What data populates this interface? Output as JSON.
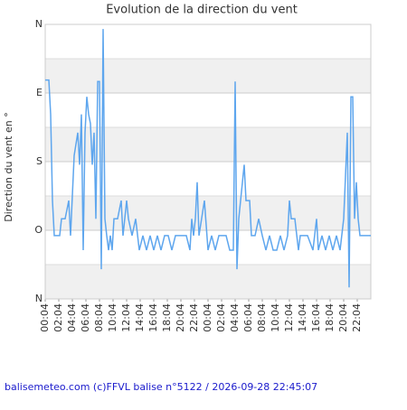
{
  "chart_data": {
    "type": "line",
    "title": "Evolution de la direction du vent",
    "y_label": "Direction du vent en °",
    "footer": "balisemeteo.com (c)FFVL balise n°5122 / 2026-09-28 22:45:07",
    "xlim": [
      0,
      48
    ],
    "xticks": [
      {
        "value": 0,
        "label": "00:04"
      },
      {
        "value": 2,
        "label": "02:04"
      },
      {
        "value": 4,
        "label": "04:04"
      },
      {
        "value": 6,
        "label": "06:04"
      },
      {
        "value": 8,
        "label": "08:04"
      },
      {
        "value": 10,
        "label": "10:04"
      },
      {
        "value": 12,
        "label": "12:04"
      },
      {
        "value": 14,
        "label": "14:04"
      },
      {
        "value": 16,
        "label": "16:04"
      },
      {
        "value": 18,
        "label": "18:04"
      },
      {
        "value": 20,
        "label": "20:04"
      },
      {
        "value": 22,
        "label": "22:04"
      },
      {
        "value": 24,
        "label": "00:04"
      },
      {
        "value": 26,
        "label": "02:04"
      },
      {
        "value": 28,
        "label": "04:04"
      },
      {
        "value": 30,
        "label": "06:04"
      },
      {
        "value": 32,
        "label": "08:04"
      },
      {
        "value": 34,
        "label": "10:04"
      },
      {
        "value": 36,
        "label": "12:04"
      },
      {
        "value": 38,
        "label": "14:04"
      },
      {
        "value": 40,
        "label": "16:04"
      },
      {
        "value": 42,
        "label": "18:04"
      },
      {
        "value": 44,
        "label": "20:04"
      },
      {
        "value": 46,
        "label": "22:04"
      }
    ],
    "ylim": [
      360,
      0
    ],
    "yticks": [
      {
        "value": 0,
        "label": "N"
      },
      {
        "value": 90,
        "label": "E"
      },
      {
        "value": 180,
        "label": "S"
      },
      {
        "value": 270,
        "label": "O"
      },
      {
        "value": 360,
        "label": "N"
      }
    ],
    "grid": true,
    "series": [
      {
        "color": "#5ea6ee",
        "x": [
          0,
          0.53,
          0.8,
          1.07,
          1.33,
          1.6,
          2.13,
          2.4,
          2.93,
          3.47,
          3.73,
          4.27,
          4.8,
          5.07,
          5.33,
          5.6,
          5.87,
          6.13,
          6.4,
          6.67,
          6.93,
          7.2,
          7.47,
          7.73,
          8,
          8.27,
          8.53,
          8.8,
          9.07,
          9.33,
          9.6,
          9.87,
          10.13,
          10.67,
          11.2,
          11.47,
          12,
          12.27,
          12.8,
          13.33,
          13.87,
          14.4,
          14.93,
          15.47,
          16,
          16.53,
          17.07,
          17.6,
          18.13,
          18.67,
          19.2,
          19.73,
          20.8,
          21.33,
          21.6,
          21.87,
          22.13,
          22.4,
          22.67,
          23.47,
          24,
          24.53,
          25.07,
          25.6,
          26.13,
          26.67,
          27.2,
          27.73,
          28,
          28.27,
          28.53,
          28.8,
          29.33,
          29.6,
          30.13,
          30.4,
          30.93,
          31.47,
          32,
          32.53,
          33.07,
          33.6,
          34.13,
          34.67,
          35.2,
          35.73,
          36,
          36.27,
          36.8,
          37.33,
          37.6,
          38.13,
          38.67,
          39.47,
          40,
          40.27,
          40.8,
          41.33,
          41.87,
          42.4,
          42.93,
          43.47,
          44,
          44.53,
          44.8,
          45.07,
          45.33,
          45.6,
          45.87,
          46.13,
          46.4,
          47.2,
          48
        ],
        "values": [
          73,
          73,
          118,
          231,
          277,
          277,
          277,
          255,
          255,
          231,
          277,
          172,
          142,
          184,
          118,
          296,
          142,
          95,
          118,
          130,
          184,
          142,
          255,
          75,
          75,
          321,
          6,
          255,
          277,
          296,
          277,
          296,
          255,
          255,
          231,
          277,
          231,
          255,
          277,
          255,
          296,
          277,
          296,
          277,
          296,
          277,
          296,
          277,
          277,
          296,
          277,
          277,
          277,
          296,
          255,
          277,
          255,
          207,
          277,
          231,
          296,
          277,
          296,
          277,
          277,
          277,
          296,
          296,
          75,
          321,
          255,
          231,
          184,
          231,
          231,
          277,
          277,
          255,
          277,
          296,
          277,
          296,
          296,
          277,
          296,
          277,
          231,
          255,
          255,
          296,
          277,
          277,
          277,
          296,
          255,
          296,
          277,
          296,
          277,
          296,
          277,
          296,
          255,
          142,
          345,
          95,
          95,
          255,
          207,
          255,
          277,
          277,
          277
        ]
      }
    ]
  }
}
